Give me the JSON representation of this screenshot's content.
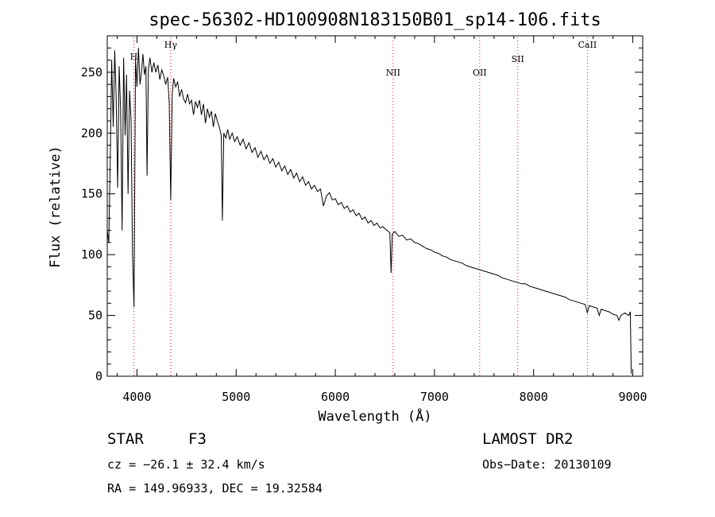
{
  "chart_data": {
    "type": "line",
    "title": "spec-56302-HD100908N183150B01_sp14-106.fits",
    "xlabel": "Wavelength (Å)",
    "ylabel": "Flux (relative)",
    "xlim": [
      3700,
      9100
    ],
    "ylim": [
      0,
      280
    ],
    "x_ticks": [
      4000,
      5000,
      6000,
      7000,
      8000,
      9000
    ],
    "y_ticks": [
      0,
      50,
      100,
      150,
      200,
      250
    ],
    "grid": false,
    "series": [
      {
        "color": "#000000",
        "points": [
          [
            3700,
            120
          ],
          [
            3715,
            110
          ],
          [
            3730,
            175
          ],
          [
            3745,
            260
          ],
          [
            3760,
            205
          ],
          [
            3775,
            268
          ],
          [
            3790,
            230
          ],
          [
            3805,
            155
          ],
          [
            3820,
            255
          ],
          [
            3835,
            220
          ],
          [
            3850,
            120
          ],
          [
            3865,
            262
          ],
          [
            3880,
            198
          ],
          [
            3895,
            248
          ],
          [
            3910,
            150
          ],
          [
            3925,
            235
          ],
          [
            3940,
            210
          ],
          [
            3955,
            100
          ],
          [
            3970,
            57
          ],
          [
            3985,
            262
          ],
          [
            4000,
            238
          ],
          [
            4015,
            270
          ],
          [
            4030,
            240
          ],
          [
            4045,
            250
          ],
          [
            4060,
            265
          ],
          [
            4075,
            248
          ],
          [
            4090,
            255
          ],
          [
            4101,
            165
          ],
          [
            4115,
            252
          ],
          [
            4130,
            262
          ],
          [
            4150,
            250
          ],
          [
            4170,
            258
          ],
          [
            4190,
            250
          ],
          [
            4210,
            256
          ],
          [
            4230,
            244
          ],
          [
            4250,
            252
          ],
          [
            4270,
            247
          ],
          [
            4290,
            240
          ],
          [
            4310,
            246
          ],
          [
            4325,
            225
          ],
          [
            4340,
            145
          ],
          [
            4355,
            232
          ],
          [
            4370,
            245
          ],
          [
            4390,
            238
          ],
          [
            4410,
            242
          ],
          [
            4430,
            230
          ],
          [
            4450,
            236
          ],
          [
            4470,
            228
          ],
          [
            4490,
            225
          ],
          [
            4510,
            232
          ],
          [
            4530,
            224
          ],
          [
            4550,
            227
          ],
          [
            4570,
            215
          ],
          [
            4590,
            226
          ],
          [
            4610,
            221
          ],
          [
            4630,
            227
          ],
          [
            4650,
            215
          ],
          [
            4670,
            224
          ],
          [
            4690,
            208
          ],
          [
            4710,
            220
          ],
          [
            4730,
            213
          ],
          [
            4750,
            218
          ],
          [
            4770,
            205
          ],
          [
            4790,
            216
          ],
          [
            4810,
            210
          ],
          [
            4830,
            205
          ],
          [
            4850,
            198
          ],
          [
            4861,
            128
          ],
          [
            4875,
            200
          ],
          [
            4895,
            196
          ],
          [
            4915,
            203
          ],
          [
            4935,
            195
          ],
          [
            4960,
            200
          ],
          [
            4985,
            193
          ],
          [
            5010,
            197
          ],
          [
            5040,
            190
          ],
          [
            5070,
            195
          ],
          [
            5100,
            187
          ],
          [
            5130,
            192
          ],
          [
            5160,
            184
          ],
          [
            5190,
            188
          ],
          [
            5220,
            180
          ],
          [
            5250,
            185
          ],
          [
            5280,
            178
          ],
          [
            5310,
            182
          ],
          [
            5340,
            175
          ],
          [
            5370,
            179
          ],
          [
            5400,
            172
          ],
          [
            5430,
            176
          ],
          [
            5460,
            169
          ],
          [
            5490,
            173
          ],
          [
            5520,
            166
          ],
          [
            5550,
            170
          ],
          [
            5580,
            163
          ],
          [
            5610,
            167
          ],
          [
            5640,
            160
          ],
          [
            5670,
            164
          ],
          [
            5700,
            157
          ],
          [
            5730,
            160
          ],
          [
            5760,
            154
          ],
          [
            5790,
            157
          ],
          [
            5820,
            152
          ],
          [
            5850,
            154
          ],
          [
            5880,
            140
          ],
          [
            5910,
            148
          ],
          [
            5940,
            151
          ],
          [
            5970,
            145
          ],
          [
            6000,
            146
          ],
          [
            6030,
            141
          ],
          [
            6060,
            143
          ],
          [
            6090,
            138
          ],
          [
            6120,
            140
          ],
          [
            6150,
            135
          ],
          [
            6180,
            137
          ],
          [
            6210,
            132
          ],
          [
            6240,
            134
          ],
          [
            6270,
            129
          ],
          [
            6300,
            131
          ],
          [
            6330,
            126
          ],
          [
            6360,
            128
          ],
          [
            6390,
            124
          ],
          [
            6420,
            126
          ],
          [
            6450,
            122
          ],
          [
            6480,
            123
          ],
          [
            6520,
            120
          ],
          [
            6550,
            118
          ],
          [
            6563,
            85
          ],
          [
            6575,
            117
          ],
          [
            6600,
            119
          ],
          [
            6640,
            115
          ],
          [
            6680,
            116
          ],
          [
            6720,
            112
          ],
          [
            6760,
            113
          ],
          [
            6800,
            110
          ],
          [
            6840,
            109
          ],
          [
            6880,
            107
          ],
          [
            6920,
            105
          ],
          [
            6960,
            104
          ],
          [
            7000,
            102
          ],
          [
            7040,
            101
          ],
          [
            7080,
            99
          ],
          [
            7120,
            98
          ],
          [
            7160,
            96
          ],
          [
            7200,
            95
          ],
          [
            7240,
            94
          ],
          [
            7280,
            93
          ],
          [
            7320,
            91
          ],
          [
            7360,
            90
          ],
          [
            7400,
            89
          ],
          [
            7440,
            88
          ],
          [
            7480,
            87
          ],
          [
            7520,
            86
          ],
          [
            7560,
            85
          ],
          [
            7600,
            84
          ],
          [
            7640,
            83
          ],
          [
            7680,
            81
          ],
          [
            7720,
            80
          ],
          [
            7760,
            79
          ],
          [
            7800,
            78
          ],
          [
            7840,
            77
          ],
          [
            7880,
            76
          ],
          [
            7920,
            76
          ],
          [
            7960,
            74
          ],
          [
            8000,
            73
          ],
          [
            8040,
            72
          ],
          [
            8080,
            71
          ],
          [
            8120,
            70
          ],
          [
            8160,
            69
          ],
          [
            8200,
            68
          ],
          [
            8240,
            67
          ],
          [
            8280,
            66
          ],
          [
            8320,
            65
          ],
          [
            8360,
            63
          ],
          [
            8400,
            62
          ],
          [
            8440,
            61
          ],
          [
            8480,
            60
          ],
          [
            8520,
            59
          ],
          [
            8542,
            52
          ],
          [
            8560,
            58
          ],
          [
            8600,
            57
          ],
          [
            8640,
            56
          ],
          [
            8662,
            50
          ],
          [
            8680,
            55
          ],
          [
            8720,
            54
          ],
          [
            8760,
            53
          ],
          [
            8800,
            51
          ],
          [
            8840,
            50
          ],
          [
            8860,
            46
          ],
          [
            8880,
            50
          ],
          [
            8920,
            52
          ],
          [
            8960,
            50
          ],
          [
            8975,
            53
          ],
          [
            8985,
            2
          ]
        ]
      }
    ],
    "lines": [
      {
        "label": "H",
        "x": 3968
      },
      {
        "label": "Hγ",
        "x": 4340
      },
      {
        "label": "NII",
        "x": 6583
      },
      {
        "label": "OII",
        "x": 7456
      },
      {
        "label": "SII",
        "x": 7840
      },
      {
        "label": "CaII",
        "x": 8542
      }
    ],
    "line_marker_color": "#ff0000"
  },
  "info": {
    "object_class": "STAR",
    "subclass": "F3",
    "survey": "LAMOST DR2",
    "cz": "cz = −26.1 ± 32.4 km/s",
    "obs_date": "Obs−Date: 20130109",
    "coords": "RA = 149.96933, DEC =  19.32584"
  }
}
